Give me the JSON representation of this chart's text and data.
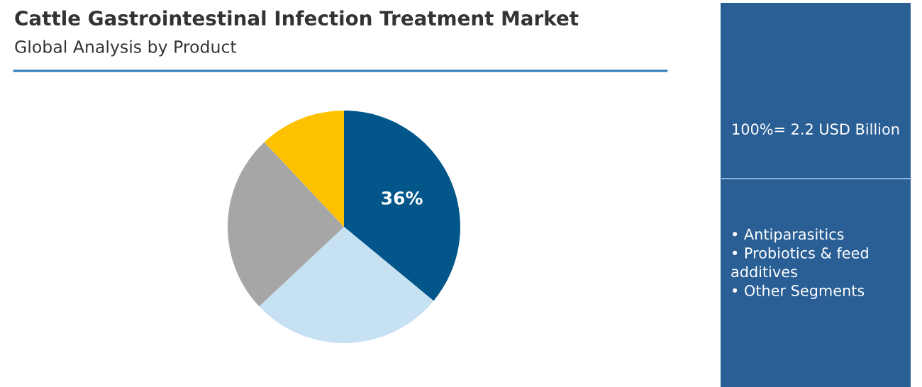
{
  "chart_data": {
    "type": "pie",
    "title": "Cattle Gastrointestinal Infection Treatment Market",
    "subtitle": "Global Analysis by Product",
    "categories": [
      null,
      null,
      null,
      null
    ],
    "values": [
      36,
      27,
      25,
      12
    ],
    "colors": [
      "#02568a",
      "#c5e1f2",
      "#a6a6a6",
      "#fdc100"
    ],
    "value_labels": [
      "36%",
      null,
      null,
      null
    ],
    "annotations": [
      "100%= 2.2 USD Billion",
      "• Antiparasitics\n• Probiotics & feed\nadditives\n• Other Segments"
    ]
  }
}
